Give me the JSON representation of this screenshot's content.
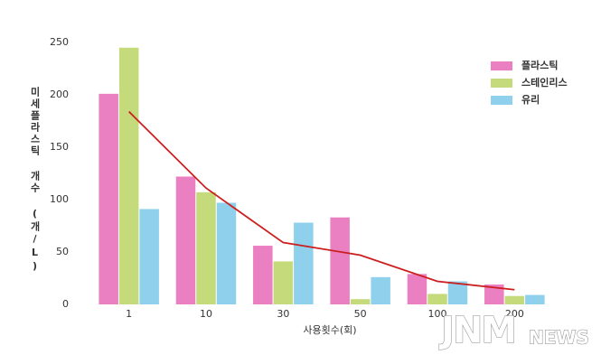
{
  "chart_data": {
    "type": "bar",
    "categories": [
      "1",
      "10",
      "30",
      "50",
      "100",
      "200"
    ],
    "series": [
      {
        "name": "플라스틱",
        "color": "#ea80c2",
        "values": [
          201,
          122,
          56,
          83,
          29,
          19
        ]
      },
      {
        "name": "스테인리스",
        "color": "#c4da7b",
        "values": [
          245,
          107,
          41,
          5,
          10,
          8
        ]
      },
      {
        "name": "유리",
        "color": "#8fd1ec",
        "values": [
          91,
          97,
          78,
          26,
          22,
          9
        ]
      }
    ],
    "line": {
      "type": "line",
      "color": "#cc1f1f",
      "values": [
        184,
        111,
        59,
        47,
        22,
        14
      ]
    },
    "xlabel": "사용횟수(회)",
    "ylabel": "미세플라스틱 개수 (개/L)",
    "ylim": [
      0,
      250
    ],
    "yticks": [
      0,
      50,
      100,
      150,
      200,
      250
    ],
    "grid": false,
    "legend": "upper right"
  },
  "watermark": {
    "logo": "JNM",
    "suffix": "NEWS"
  }
}
